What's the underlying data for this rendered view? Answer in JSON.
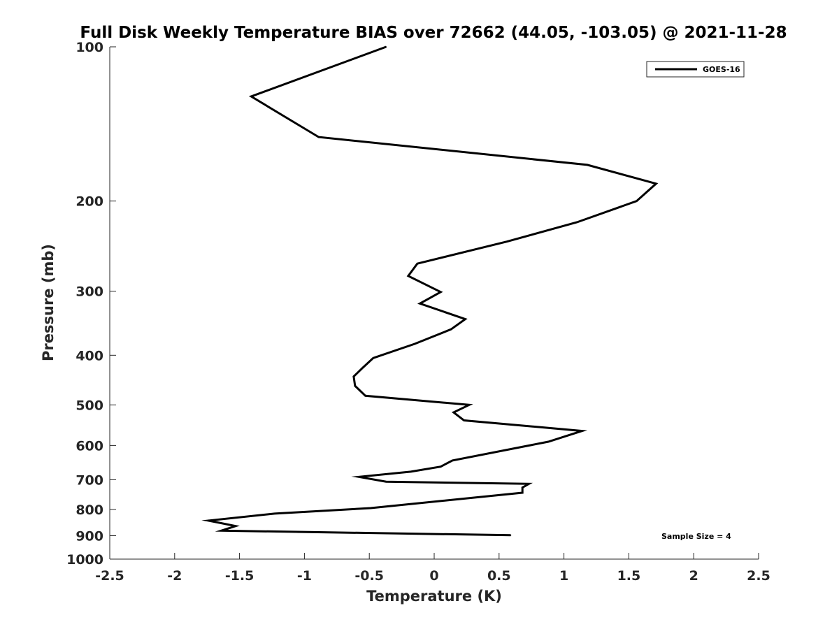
{
  "chart_data": {
    "type": "line",
    "title": "Full Disk Weekly Temperature BIAS over 72662 (44.05, -103.05) @ 2021-11-28",
    "xlabel": "Temperature (K)",
    "ylabel": "Pressure (mb)",
    "xlim": [
      -2.5,
      2.5
    ],
    "ylim": [
      100,
      1000
    ],
    "y_scale": "log",
    "y_reversed": true,
    "x_ticks": [
      "-2.5",
      "-2",
      "-1.5",
      "-1",
      "-0.5",
      "0",
      "0.5",
      "1",
      "1.5",
      "2",
      "2.5"
    ],
    "y_ticks": [
      "100",
      "200",
      "300",
      "400",
      "500",
      "600",
      "700",
      "800",
      "900",
      "1000"
    ],
    "grid": false,
    "legend_position": "top-right",
    "annotation": "Sample Size = 4",
    "series": [
      {
        "name": "GOES-16",
        "color": "#000000",
        "points": [
          {
            "x": -0.37,
            "p": 100
          },
          {
            "x": -1.41,
            "p": 125
          },
          {
            "x": -0.89,
            "p": 150
          },
          {
            "x": 1.18,
            "p": 170
          },
          {
            "x": 1.71,
            "p": 185
          },
          {
            "x": 1.56,
            "p": 200
          },
          {
            "x": 1.1,
            "p": 220
          },
          {
            "x": 0.56,
            "p": 240
          },
          {
            "x": -0.13,
            "p": 265
          },
          {
            "x": -0.2,
            "p": 280
          },
          {
            "x": 0.05,
            "p": 301
          },
          {
            "x": -0.11,
            "p": 317
          },
          {
            "x": 0.24,
            "p": 340
          },
          {
            "x": 0.13,
            "p": 356
          },
          {
            "x": -0.15,
            "p": 380
          },
          {
            "x": -0.47,
            "p": 405
          },
          {
            "x": -0.55,
            "p": 423
          },
          {
            "x": -0.62,
            "p": 440
          },
          {
            "x": -0.61,
            "p": 459
          },
          {
            "x": -0.53,
            "p": 480
          },
          {
            "x": 0.27,
            "p": 500
          },
          {
            "x": 0.15,
            "p": 517
          },
          {
            "x": 0.23,
            "p": 536
          },
          {
            "x": 1.14,
            "p": 562
          },
          {
            "x": 0.88,
            "p": 590
          },
          {
            "x": 0.14,
            "p": 642
          },
          {
            "x": 0.05,
            "p": 660
          },
          {
            "x": -0.18,
            "p": 675
          },
          {
            "x": -0.58,
            "p": 691
          },
          {
            "x": -0.37,
            "p": 706
          },
          {
            "x": 0.73,
            "p": 713
          },
          {
            "x": 0.68,
            "p": 725
          },
          {
            "x": 0.68,
            "p": 742
          },
          {
            "x": -0.49,
            "p": 795
          },
          {
            "x": -1.23,
            "p": 815
          },
          {
            "x": -1.74,
            "p": 841
          },
          {
            "x": -1.53,
            "p": 862
          },
          {
            "x": -1.64,
            "p": 880
          },
          {
            "x": 0.59,
            "p": 898
          }
        ]
      }
    ]
  }
}
